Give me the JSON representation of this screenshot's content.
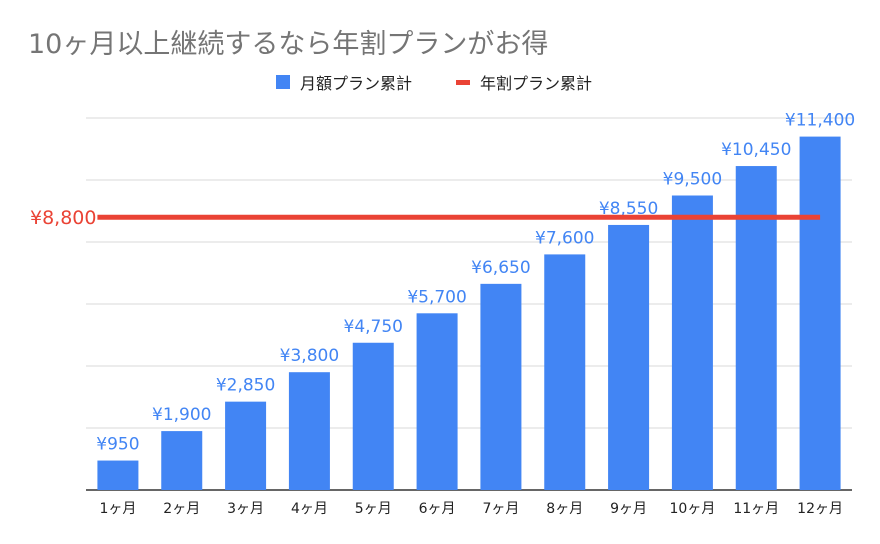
{
  "colors": {
    "bar": "#4285f4",
    "line": "#ea4335",
    "title": "#757575",
    "grid": "#d9d9d9",
    "axis": "#333333"
  },
  "legend": {
    "monthly_label": "月額プラン累計",
    "yearly_label": "年割プラン累計"
  },
  "chart_data": {
    "type": "bar",
    "title": "10ヶ月以上継続するなら年割プランがお得",
    "categories": [
      "1ヶ月",
      "2ヶ月",
      "3ヶ月",
      "4ヶ月",
      "5ヶ月",
      "6ヶ月",
      "7ヶ月",
      "8ヶ月",
      "9ヶ月",
      "10ヶ月",
      "11ヶ月",
      "12ヶ月"
    ],
    "series": [
      {
        "name": "月額プラン累計",
        "type": "bar",
        "values": [
          950,
          1900,
          2850,
          3800,
          4750,
          5700,
          6650,
          7600,
          8550,
          9500,
          10450,
          11400
        ],
        "labels": [
          "¥950",
          "¥1,900",
          "¥2,850",
          "¥3,800",
          "¥4,750",
          "¥5,700",
          "¥6,650",
          "¥7,600",
          "¥8,550",
          "¥9,500",
          "¥10,450",
          "¥11,400"
        ]
      },
      {
        "name": "年割プラン累計",
        "type": "line",
        "value": 8800,
        "label": "¥8,800"
      }
    ],
    "ylim": [
      0,
      12000
    ],
    "grid": true,
    "legend_position": "top"
  }
}
